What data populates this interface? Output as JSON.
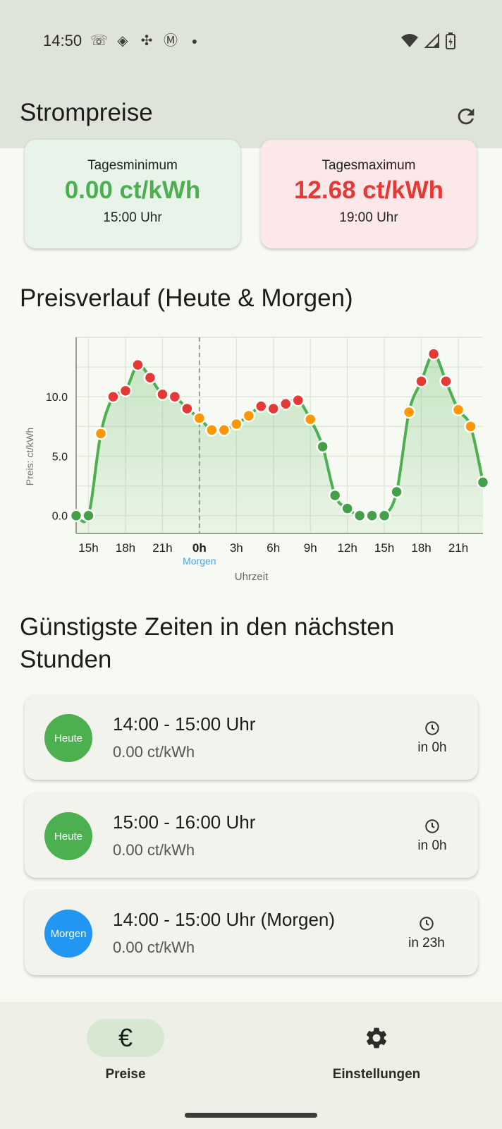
{
  "status": {
    "time": "14:50"
  },
  "appbar": {
    "title": "Strompreise",
    "refresh_icon": "refresh-icon"
  },
  "stats": {
    "min": {
      "label": "Tagesminimum",
      "value": "0.00 ct/kWh",
      "time": "15:00 Uhr",
      "color": "#4caf50",
      "bg": "#e8f4e9"
    },
    "max": {
      "label": "Tagesmaximum",
      "value": "12.68 ct/kWh",
      "time": "19:00 Uhr",
      "color": "#e53935",
      "bg": "#fde8e9"
    }
  },
  "chart_section": {
    "title": "Preisverlauf (Heute & Morgen)"
  },
  "chart_data": {
    "type": "line",
    "xlabel": "Uhrzeit",
    "ylabel": "Preis: ct/kWh",
    "ylim": [
      -1.5,
      15
    ],
    "yticks": [
      "0.0",
      "5.0",
      "10.0"
    ],
    "ytick_values": [
      0,
      5,
      10
    ],
    "xticks": [
      "15h",
      "18h",
      "21h",
      "0h",
      "3h",
      "6h",
      "9h",
      "12h",
      "15h",
      "18h",
      "21h"
    ],
    "xtick_hours": [
      15,
      18,
      21,
      24,
      27,
      30,
      33,
      36,
      39,
      42,
      45
    ],
    "divider_label": "Morgen",
    "divider_hour": 24,
    "grid": true,
    "hours": [
      14,
      15,
      16,
      17,
      18,
      19,
      20,
      21,
      22,
      23,
      24,
      25,
      26,
      27,
      28,
      29,
      30,
      31,
      32,
      33,
      34,
      35,
      36,
      37,
      38,
      39,
      40,
      41,
      42,
      43,
      44,
      45,
      46,
      47
    ],
    "values": [
      0.0,
      0.0,
      6.9,
      10.0,
      10.5,
      12.68,
      11.6,
      10.2,
      10.0,
      9.0,
      8.2,
      7.2,
      7.2,
      7.7,
      8.4,
      9.2,
      9.0,
      9.4,
      9.7,
      8.1,
      5.8,
      1.7,
      0.6,
      0.0,
      0.0,
      0.0,
      2.0,
      8.7,
      11.3,
      13.6,
      11.3,
      8.9,
      7.5,
      2.8
    ],
    "colors": {
      "low": "#43a047",
      "mid": "#ff9800",
      "high": "#e53935",
      "line": "#4caf50"
    }
  },
  "cheapest": {
    "title": "Günstigste Zeiten in den nächsten Stunden",
    "items": [
      {
        "badge": "Heute",
        "badge_color": "#4caf50",
        "time": "14:00 - 15:00 Uhr",
        "price": "0.00 ct/kWh",
        "eta": "in 0h"
      },
      {
        "badge": "Heute",
        "badge_color": "#4caf50",
        "time": "15:00 - 16:00 Uhr",
        "price": "0.00 ct/kWh",
        "eta": "in 0h"
      },
      {
        "badge": "Morgen",
        "badge_color": "#2196f3",
        "time": "14:00 - 15:00 Uhr (Morgen)",
        "price": "0.00 ct/kWh",
        "eta": "in 23h"
      }
    ]
  },
  "nav": {
    "prices": {
      "label": "Preise",
      "icon": "euro-icon",
      "active": true
    },
    "settings": {
      "label": "Einstellungen",
      "icon": "gear-icon"
    }
  }
}
